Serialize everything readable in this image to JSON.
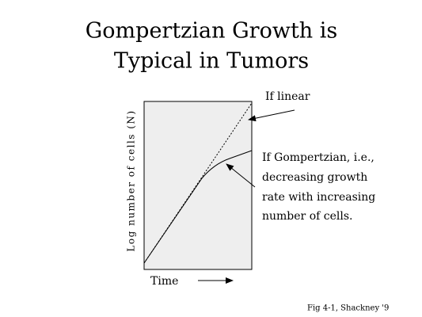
{
  "title": {
    "line1": "Gompertzian Growth is",
    "line2": "Typical in Tumors"
  },
  "axes": {
    "y_label": "Log number of cells (N)",
    "x_label": "Time"
  },
  "annotations": {
    "linear": "If linear",
    "gompertzian": [
      "If Gompertzian, i.e.,",
      "decreasing growth",
      "rate with increasing",
      "number of cells."
    ]
  },
  "caption": "Fig 4-1, Shackney '9"
}
